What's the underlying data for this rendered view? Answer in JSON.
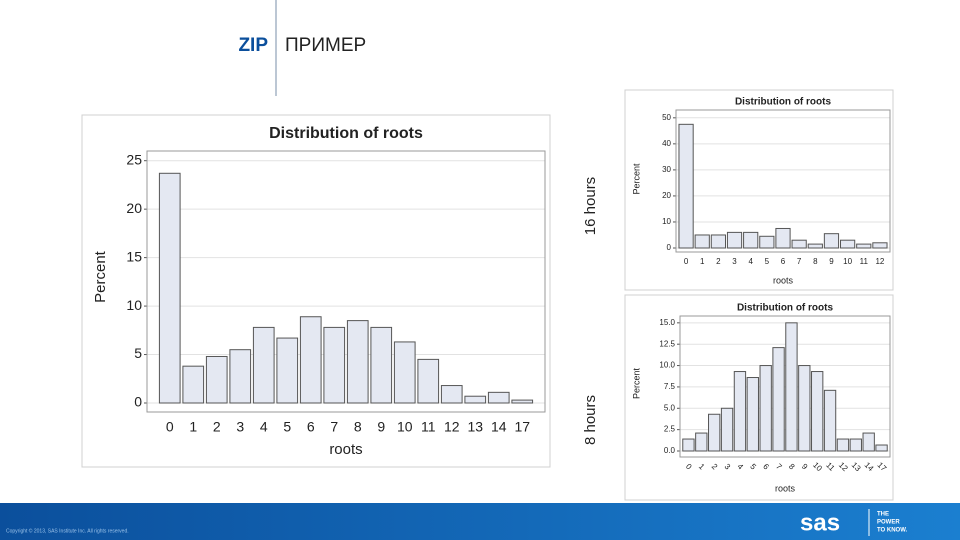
{
  "slide": {
    "title_code": "ZIP",
    "title": "ПРИМЕР",
    "label_top": "16 hours",
    "label_bottom": "8 hours",
    "copyright": "Copyright © 2013, SAS Institute Inc. All rights reserved.",
    "logo": "sas",
    "tagline": [
      "THE",
      "POWER",
      "TO KNOW."
    ]
  },
  "chart_data": [
    {
      "type": "bar",
      "title": "Distribution of roots",
      "x_label": "roots",
      "y_label": "Percent",
      "categories": [
        "0",
        "1",
        "2",
        "3",
        "4",
        "5",
        "6",
        "7",
        "8",
        "9",
        "10",
        "11",
        "12",
        "13",
        "14",
        "17"
      ],
      "values": [
        23.7,
        3.8,
        4.8,
        5.5,
        7.8,
        6.7,
        8.9,
        7.8,
        8.5,
        7.8,
        6.3,
        4.5,
        1.8,
        0.7,
        1.1,
        0.3
      ],
      "color": "#e4e8f2",
      "ylim": [
        0,
        26
      ],
      "yticks": [
        0,
        5,
        10,
        15,
        20,
        25
      ],
      "grid": true
    },
    {
      "type": "bar",
      "title": "Distribution of roots",
      "x_label": "roots",
      "y_label": "Percent",
      "categories": [
        "0",
        "1",
        "2",
        "3",
        "4",
        "5",
        "6",
        "7",
        "8",
        "9",
        "10",
        "11",
        "12"
      ],
      "values": [
        47.5,
        5,
        5,
        6,
        6,
        4.5,
        7.5,
        3,
        1.5,
        5.5,
        3,
        1.5,
        2
      ],
      "color": "#e4e8f2",
      "ylim": [
        0,
        53
      ],
      "yticks": [
        0,
        10,
        20,
        30,
        40,
        50
      ],
      "grid": true
    },
    {
      "type": "bar",
      "title": "Distribution of roots",
      "x_label": "roots",
      "y_label": "Percent",
      "categories": [
        "0",
        "1",
        "2",
        "3",
        "4",
        "5",
        "6",
        "7",
        "8",
        "9",
        "10",
        "11",
        "12",
        "13",
        "14",
        "17"
      ],
      "values": [
        1.4,
        2.1,
        4.3,
        5.0,
        9.3,
        8.6,
        10.0,
        12.1,
        15.0,
        10.0,
        9.3,
        7.1,
        1.4,
        1.4,
        2.1,
        0.7
      ],
      "color": "#e4e8f2",
      "ylim": [
        0,
        15.8
      ],
      "yticks": [
        {
          "value": 0,
          "label": "0.0"
        },
        2.5,
        {
          "value": 5,
          "label": "5.0"
        },
        7.5,
        {
          "value": 10,
          "label": "10.0"
        },
        12.5,
        {
          "value": 15,
          "label": "15.0"
        }
      ],
      "grid": true
    }
  ]
}
